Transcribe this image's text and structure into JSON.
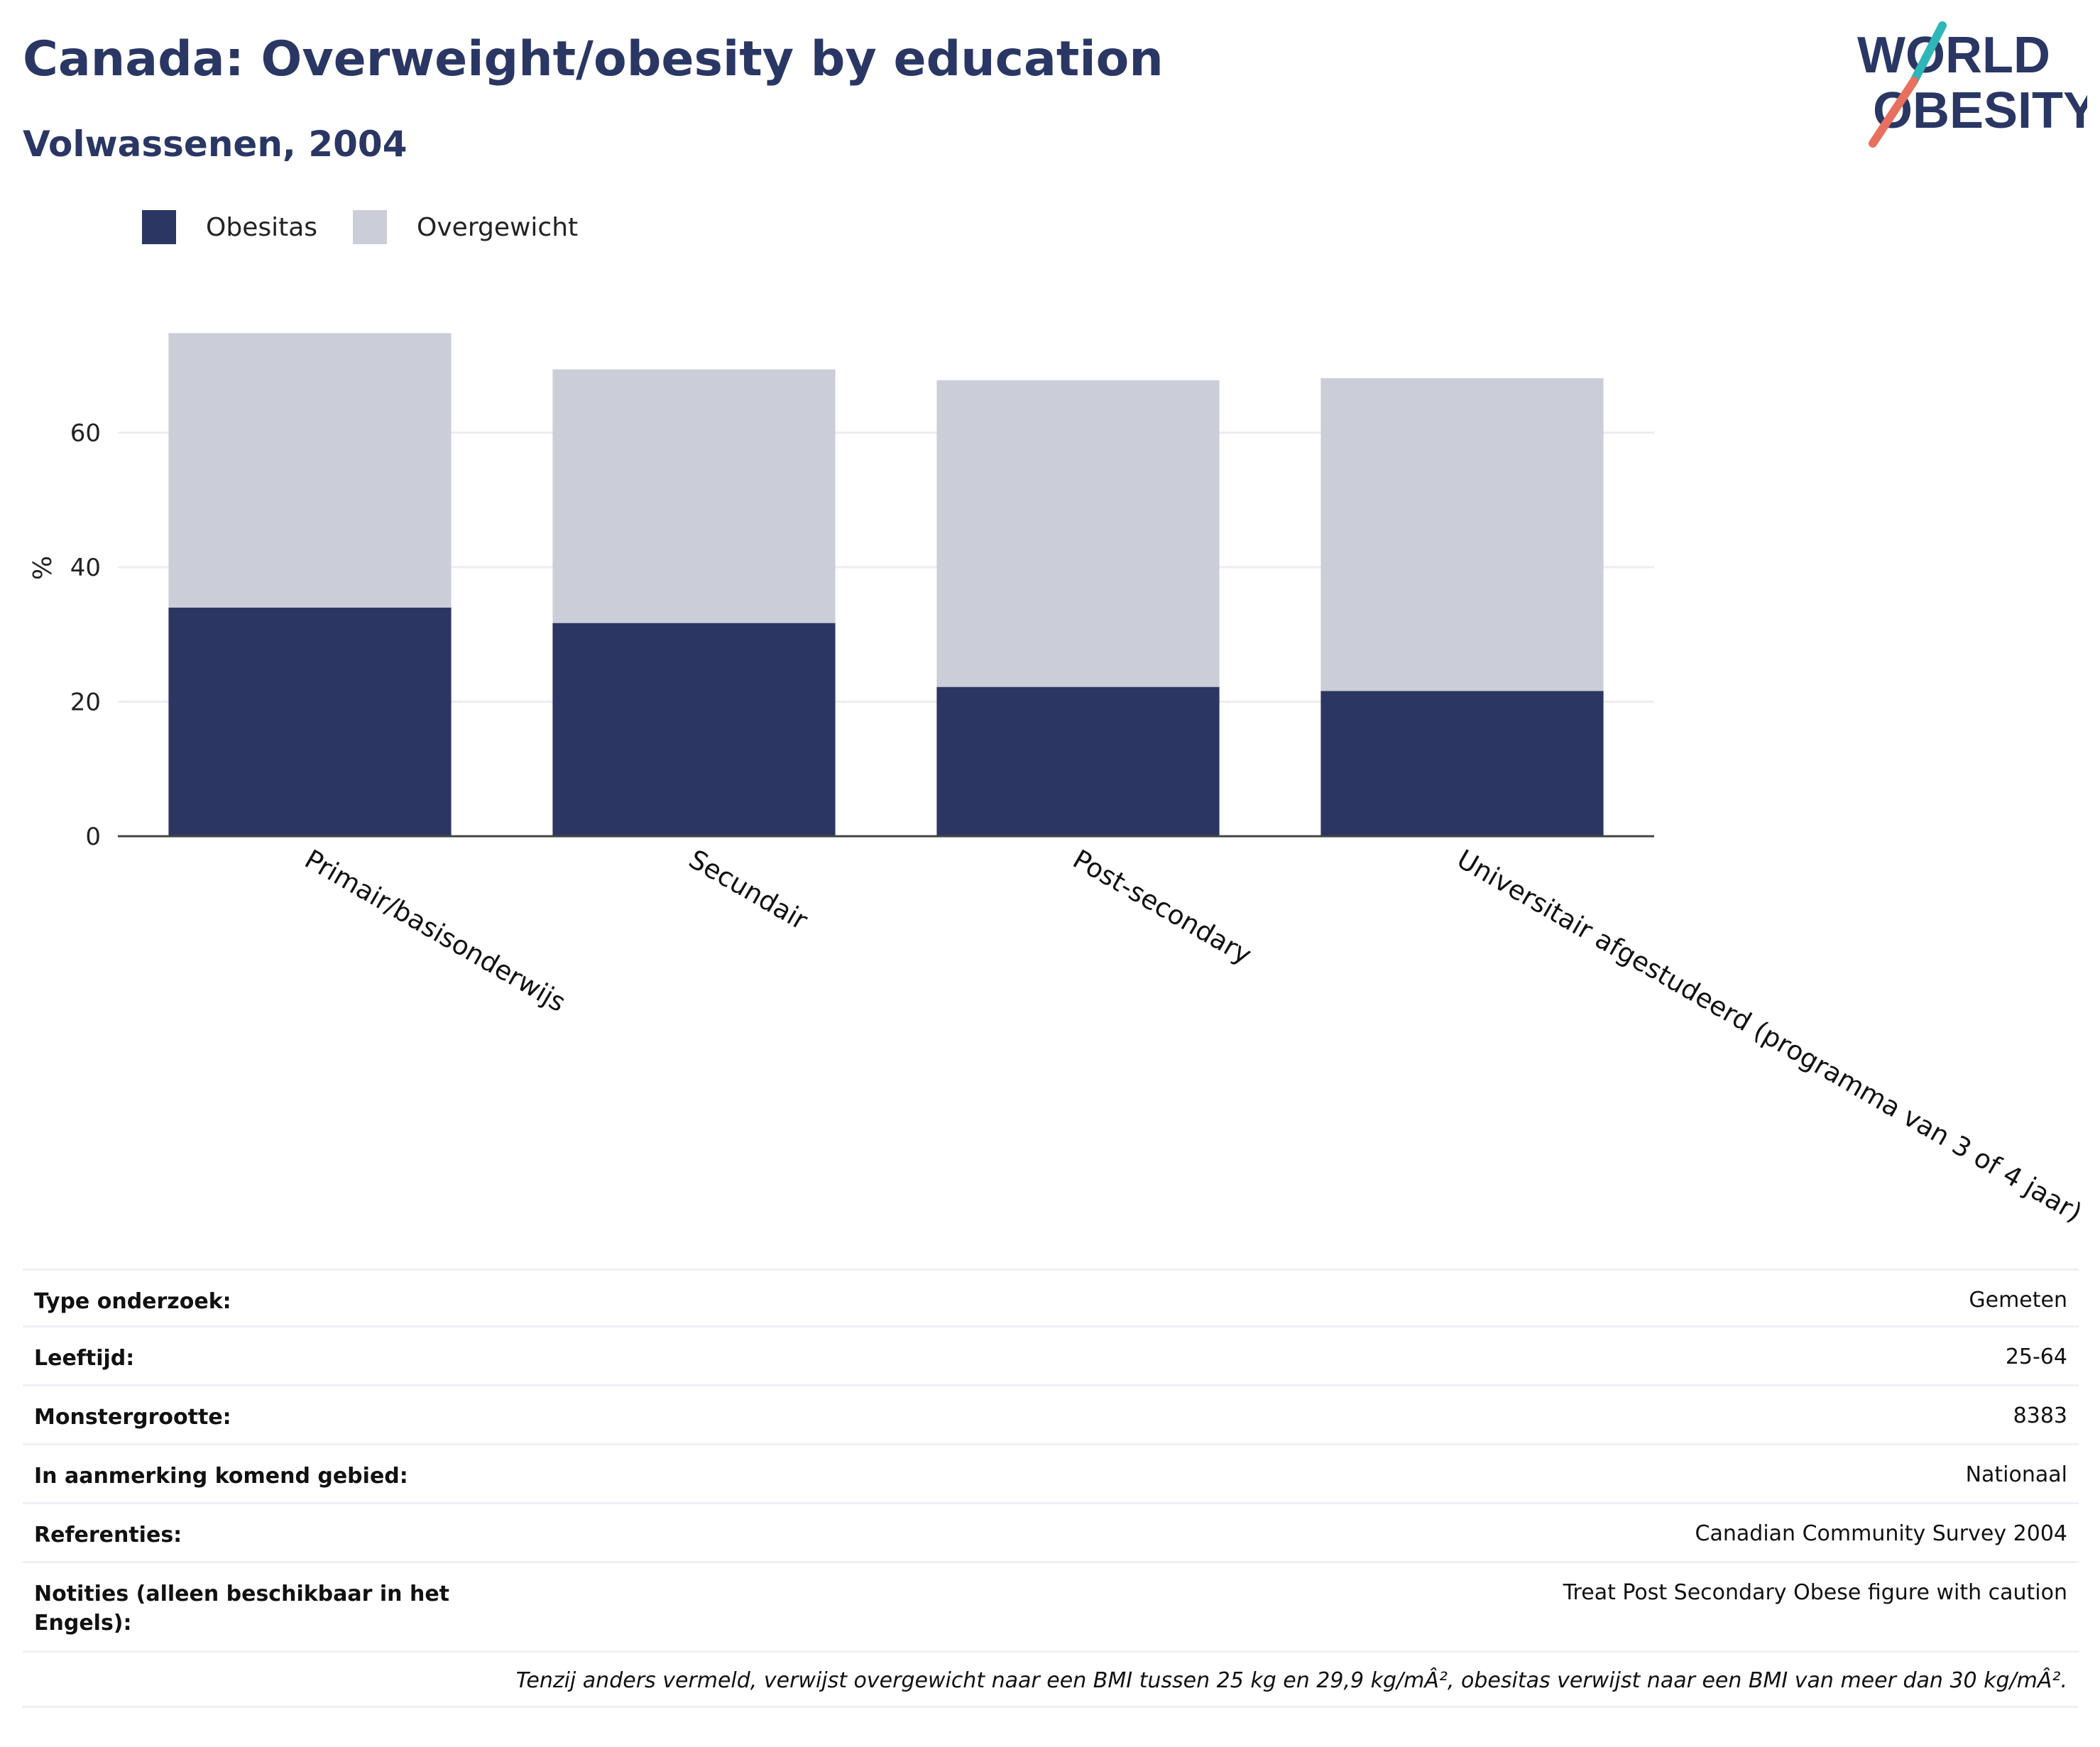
{
  "header": {
    "title": "Canada: Overweight/obesity by education",
    "subtitle": "Volwassenen, 2004",
    "logo": {
      "line1": "WORLD",
      "line2": "OBESITY"
    }
  },
  "colors": {
    "obesity": "#2b3663",
    "overweight": "#cbcdd9",
    "title": "#2a3764",
    "logo_teal": "#2fb6b6",
    "logo_coral": "#e8705f"
  },
  "chart_data": {
    "type": "bar",
    "stacked": true,
    "categories": [
      "Primair/basisonderwijs",
      "Secundair",
      "Post-secondary",
      "Universitair afgestudeerd (programma van 3 of 4 jaar)"
    ],
    "series": [
      {
        "name": "Obesitas",
        "values": [
          34.0,
          31.7,
          22.2,
          21.6
        ]
      },
      {
        "name": "Overgewicht",
        "values": [
          40.8,
          37.7,
          45.6,
          46.5
        ]
      }
    ],
    "ylabel": "%",
    "yticks": [
      0,
      20,
      40,
      60
    ],
    "ylim": [
      0,
      80
    ],
    "grid": true,
    "legend": "top-left"
  },
  "info": {
    "rows": [
      {
        "key": "Type onderzoek:",
        "value": "Gemeten"
      },
      {
        "key": "Leeftijd:",
        "value": "25-64"
      },
      {
        "key": "Monstergrootte:",
        "value": "8383"
      },
      {
        "key": "In aanmerking komend gebied:",
        "value": "Nationaal"
      },
      {
        "key": "Referenties:",
        "value": "Canadian Community Survey 2004"
      },
      {
        "key": "Notities (alleen beschikbaar in het Engels):",
        "value": "Treat Post Secondary Obese figure with caution"
      }
    ],
    "footnote": "Tenzij anders vermeld, verwijst overgewicht naar een BMI tussen 25 kg en 29,9 kg/mÂ², obesitas verwijst naar een BMI van meer dan 30 kg/mÂ²."
  }
}
